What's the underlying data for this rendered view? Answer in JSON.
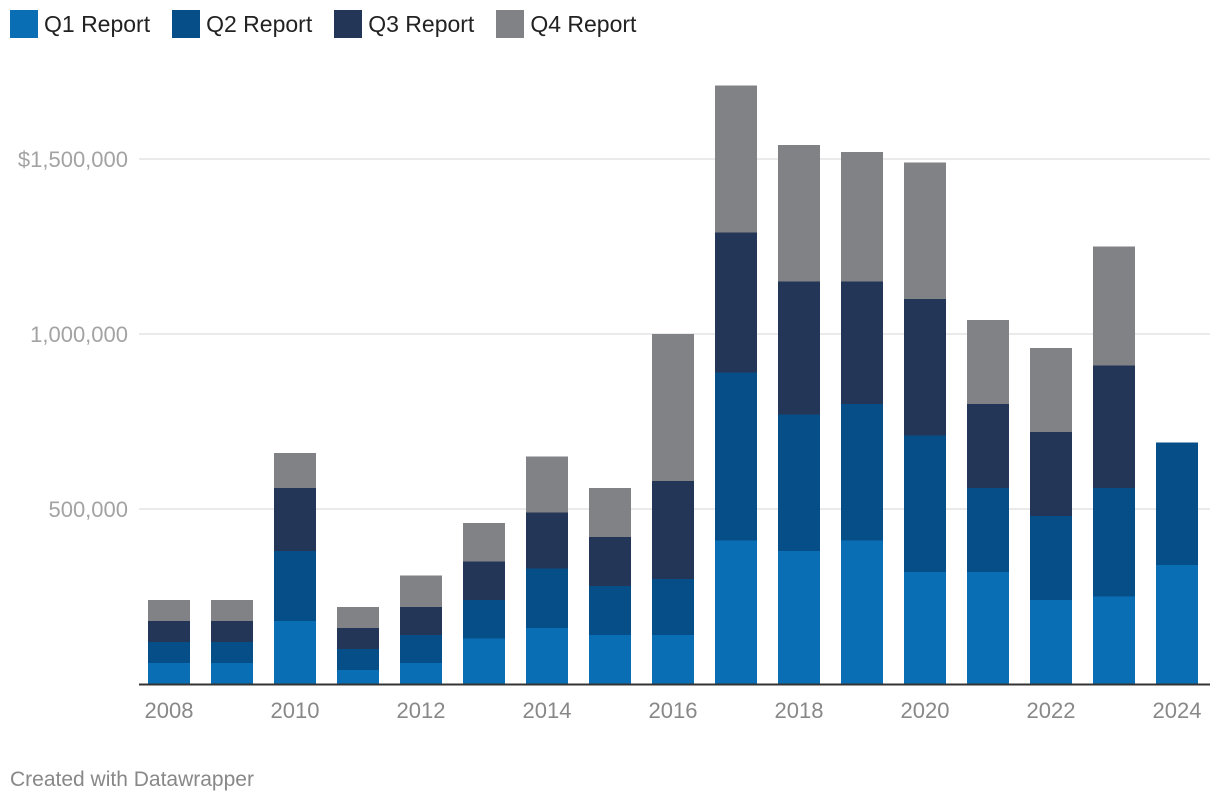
{
  "chart_data": {
    "type": "bar",
    "stacked": true,
    "categories": [
      "2008",
      "2009",
      "2010",
      "2011",
      "2012",
      "2013",
      "2014",
      "2015",
      "2016",
      "2017",
      "2018",
      "2019",
      "2020",
      "2021",
      "2022",
      "2023",
      "2024"
    ],
    "series": [
      {
        "name": "Q1 Report",
        "color": "#0a6eb4",
        "values": [
          60000,
          60000,
          180000,
          40000,
          60000,
          130000,
          160000,
          140000,
          140000,
          410000,
          380000,
          410000,
          320000,
          320000,
          240000,
          250000,
          340000
        ]
      },
      {
        "name": "Q2 Report",
        "color": "#064e87",
        "values": [
          60000,
          60000,
          200000,
          60000,
          80000,
          110000,
          170000,
          140000,
          160000,
          480000,
          390000,
          390000,
          390000,
          240000,
          240000,
          310000,
          350000
        ]
      },
      {
        "name": "Q3 Report",
        "color": "#243657",
        "values": [
          60000,
          60000,
          180000,
          60000,
          80000,
          110000,
          160000,
          140000,
          280000,
          400000,
          380000,
          350000,
          390000,
          240000,
          240000,
          350000,
          0
        ]
      },
      {
        "name": "Q4 Report",
        "color": "#818286",
        "values": [
          60000,
          60000,
          100000,
          60000,
          90000,
          110000,
          160000,
          140000,
          420000,
          420000,
          390000,
          370000,
          390000,
          240000,
          240000,
          340000,
          0
        ]
      }
    ],
    "ylim": [
      0,
      1750000
    ],
    "y_ticks": [
      {
        "value": 500000,
        "label": "500,000"
      },
      {
        "value": 1000000,
        "label": "1,000,000"
      },
      {
        "value": 1500000,
        "label": "$1,500,000"
      }
    ],
    "x_tick_labels": [
      "2008",
      "2010",
      "2012",
      "2014",
      "2016",
      "2018",
      "2020",
      "2022",
      "2024"
    ],
    "grid": true,
    "legend": "top-left"
  },
  "footer": "Created with Datawrapper"
}
